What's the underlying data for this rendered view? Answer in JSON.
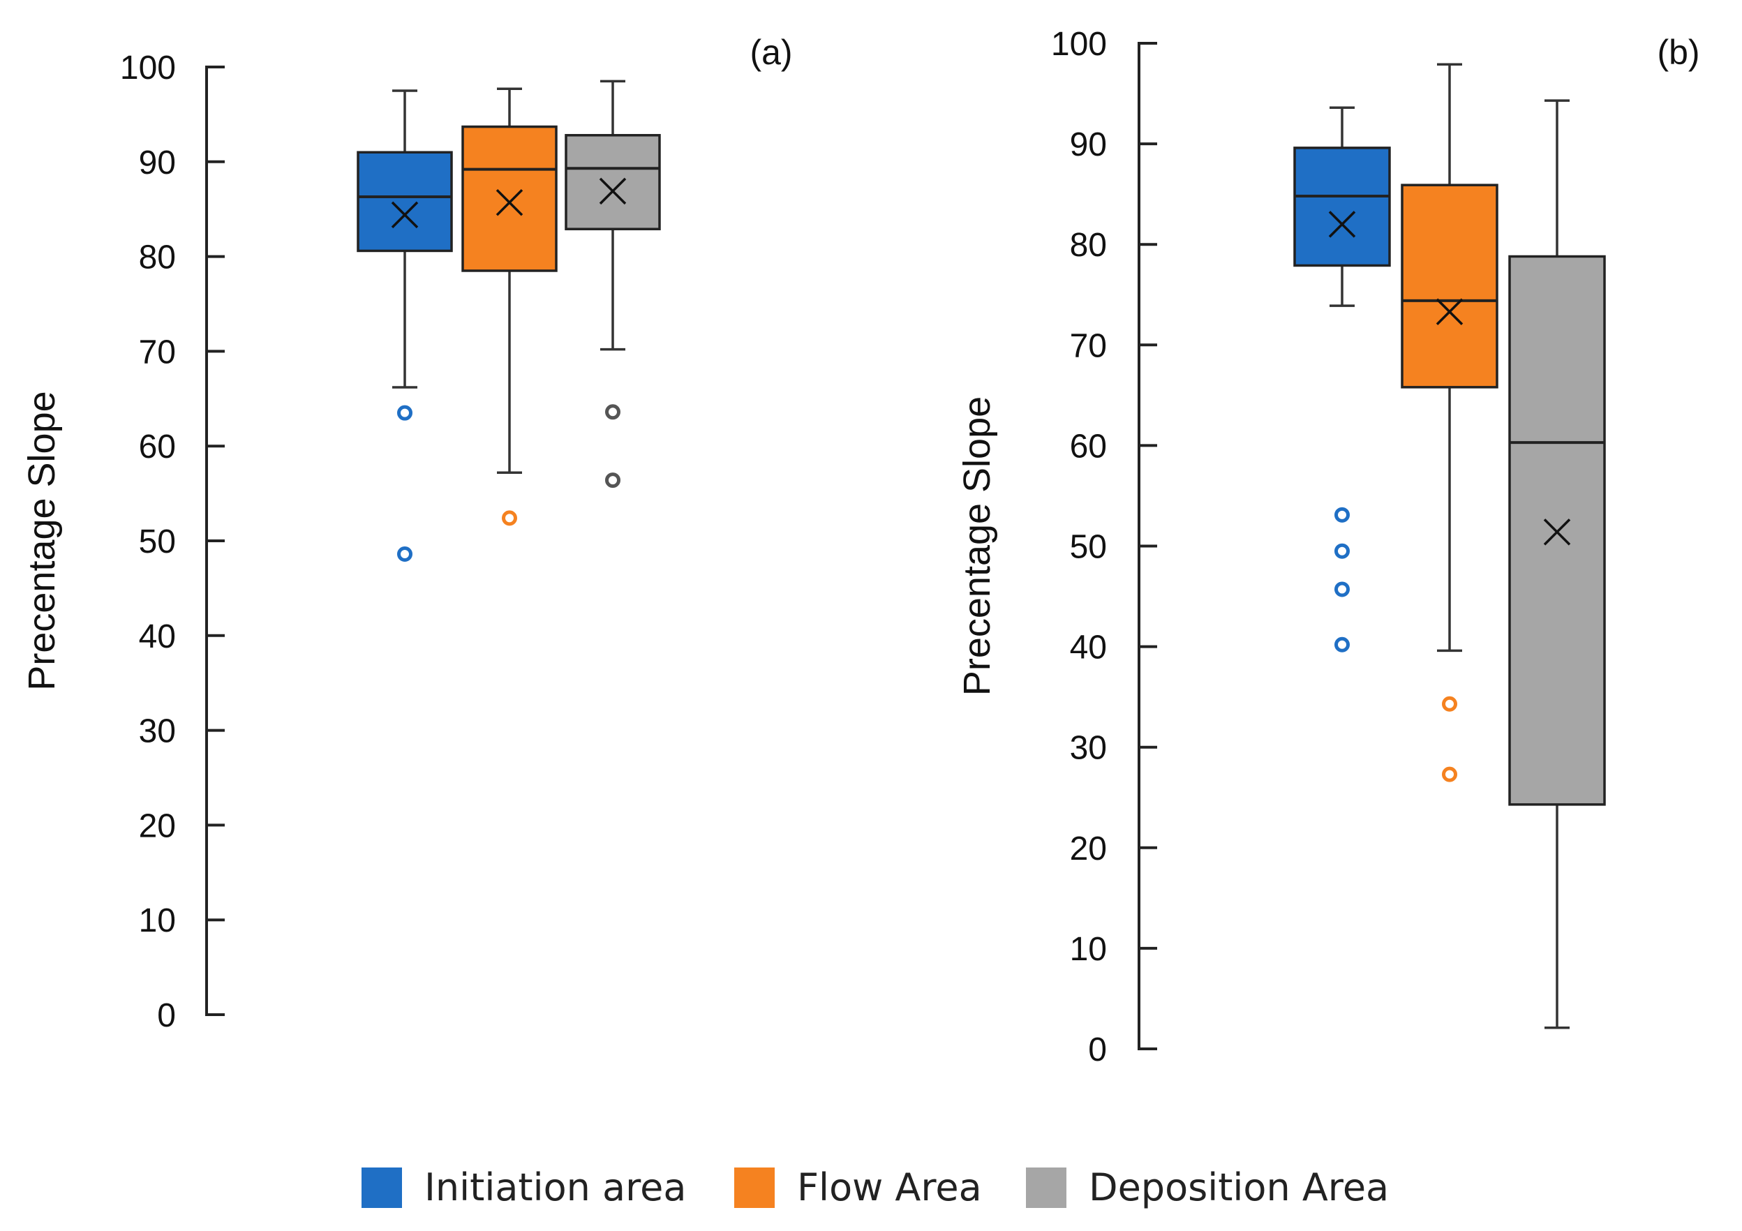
{
  "chart_data": [
    {
      "type": "box",
      "panel_label": "(a)",
      "ylabel": "Precentage Slope",
      "ylim": [
        0,
        100
      ],
      "yticks": [
        0,
        10,
        20,
        30,
        40,
        50,
        60,
        70,
        80,
        90,
        100
      ],
      "categories": [
        "Initiation area",
        "Flow Area",
        "Deposition Area"
      ],
      "boxes": [
        {
          "name": "Initiation area",
          "color": "#1f6fc5",
          "whisker_low": 66.2,
          "q1": 80.6,
          "median": 86.3,
          "q3": 91.0,
          "whisker_high": 97.5,
          "mean": 84.4,
          "outliers": [
            63.5,
            48.6
          ]
        },
        {
          "name": "Flow Area",
          "color": "#f58220",
          "whisker_low": 57.2,
          "q1": 78.5,
          "median": 89.2,
          "q3": 93.7,
          "whisker_high": 97.7,
          "mean": 85.7,
          "outliers": [
            52.4
          ]
        },
        {
          "name": "Deposition Area",
          "color": "#a6a6a6",
          "whisker_low": 70.2,
          "q1": 82.9,
          "median": 89.3,
          "q3": 92.8,
          "whisker_high": 98.5,
          "mean": 86.9,
          "outliers": [
            63.6,
            56.4
          ]
        }
      ]
    },
    {
      "type": "box",
      "panel_label": "(b)",
      "ylabel": "Precentage Slope",
      "ylim": [
        0,
        100
      ],
      "yticks": [
        0,
        10,
        20,
        30,
        40,
        50,
        60,
        70,
        80,
        90,
        100
      ],
      "categories": [
        "Initiation area",
        "Flow Area",
        "Deposition Area"
      ],
      "boxes": [
        {
          "name": "Initiation area",
          "color": "#1f6fc5",
          "whisker_low": 73.9,
          "q1": 77.9,
          "median": 84.8,
          "q3": 89.6,
          "whisker_high": 93.6,
          "mean": 82.0,
          "outliers": [
            53.1,
            49.5,
            45.7,
            40.2
          ]
        },
        {
          "name": "Flow Area",
          "color": "#f58220",
          "whisker_low": 39.6,
          "q1": 65.8,
          "median": 74.4,
          "q3": 85.9,
          "whisker_high": 97.9,
          "mean": 73.3,
          "outliers": [
            34.3,
            27.3
          ]
        },
        {
          "name": "Deposition Area",
          "color": "#a6a6a6",
          "whisker_low": 2.1,
          "q1": 24.3,
          "median": 60.3,
          "q3": 78.8,
          "whisker_high": 94.3,
          "mean": 51.4,
          "outliers": []
        }
      ]
    }
  ],
  "legend": [
    {
      "label": "Initiation area",
      "color": "#1f6fc5"
    },
    {
      "label": "Flow Area",
      "color": "#f58220"
    },
    {
      "label": "Deposition Area",
      "color": "#a6a6a6"
    }
  ]
}
